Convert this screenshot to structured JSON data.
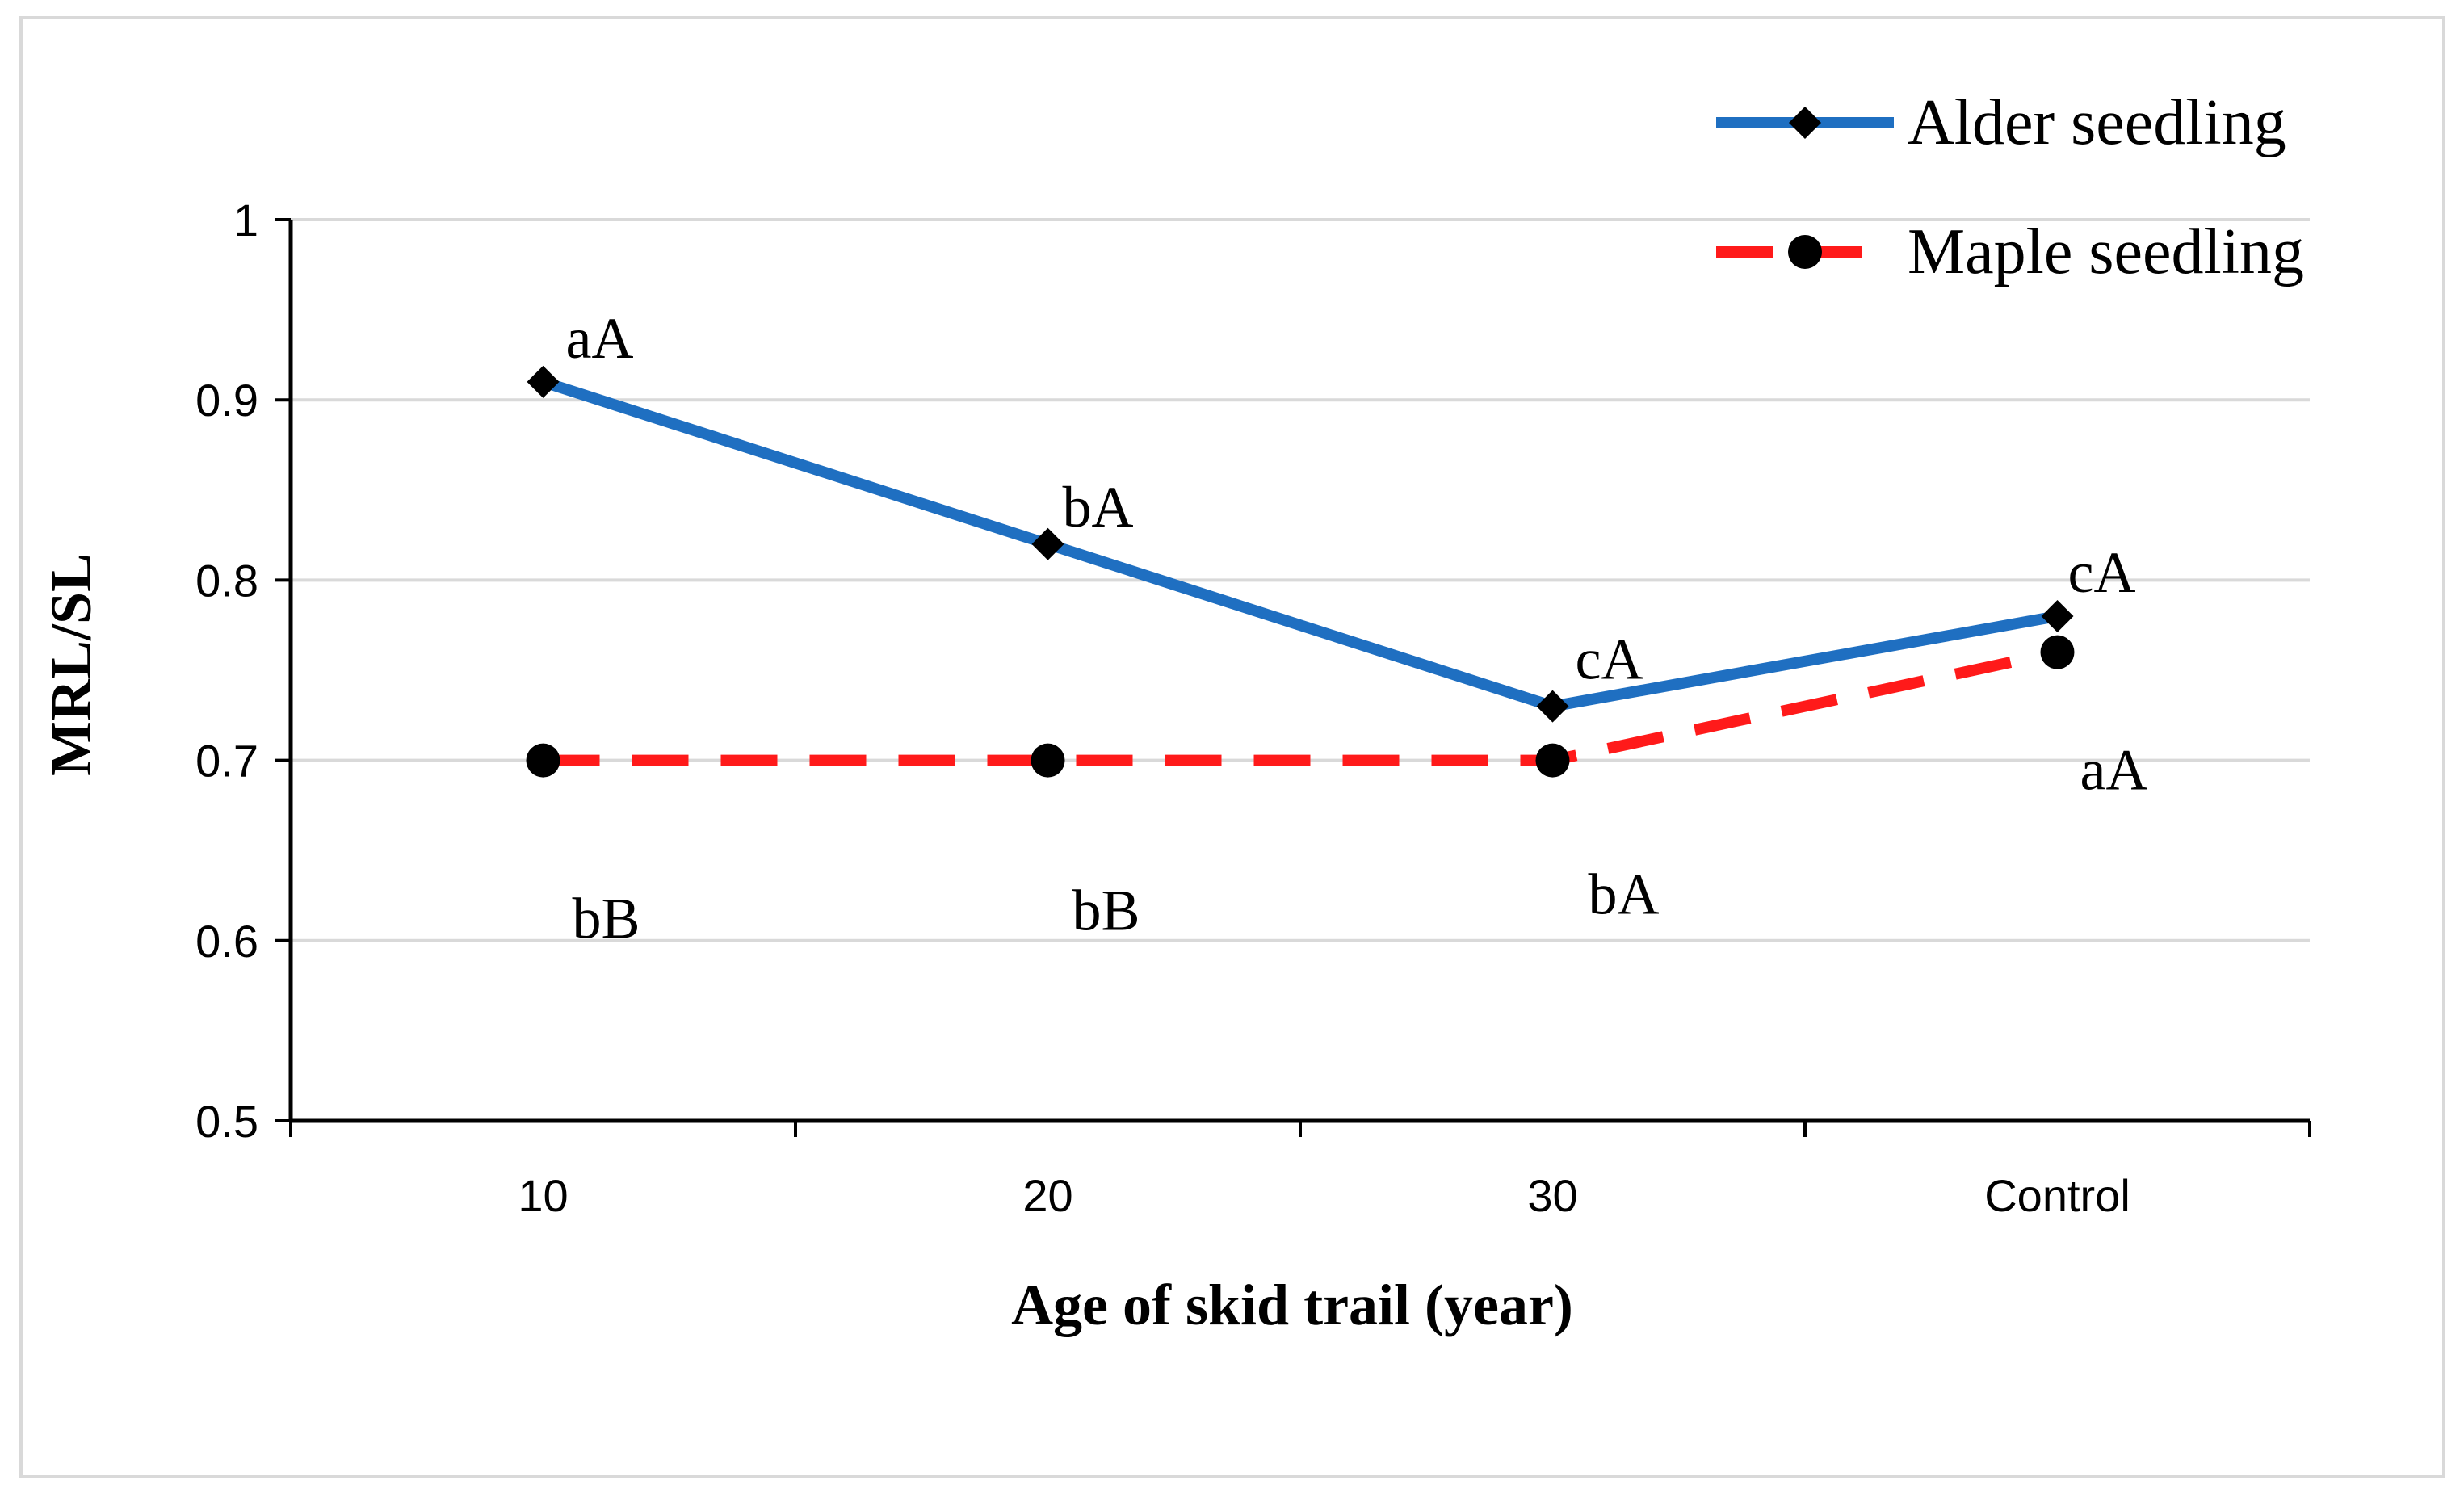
{
  "chart_data": {
    "type": "line",
    "title": "",
    "xlabel": "Age of skid trail (year)",
    "ylabel": "MRL/SL",
    "categories": [
      "10",
      "20",
      "30",
      "Control"
    ],
    "ylim": [
      0.5,
      1.0
    ],
    "yticks": [
      0.5,
      0.6,
      0.7,
      0.8,
      0.9,
      1.0
    ],
    "ytick_labels": [
      "0.5",
      "0.6",
      "0.7",
      "0.8",
      "0.9",
      "1"
    ],
    "grid": true,
    "legend_position": "top-right",
    "series": [
      {
        "name": "Alder seedling",
        "values": [
          0.91,
          0.82,
          0.73,
          0.78
        ],
        "labels": [
          "aA",
          "bA",
          "cA",
          "cA"
        ],
        "color": "#1f6fc1",
        "marker": "diamond",
        "line_style": "solid"
      },
      {
        "name": "Maple seedling",
        "values": [
          0.7,
          0.7,
          0.7,
          0.76
        ],
        "labels": [
          "bB",
          "bB",
          "bA",
          "aA"
        ],
        "color": "#ff1a1a",
        "marker": "circle",
        "line_style": "dashed"
      }
    ]
  }
}
